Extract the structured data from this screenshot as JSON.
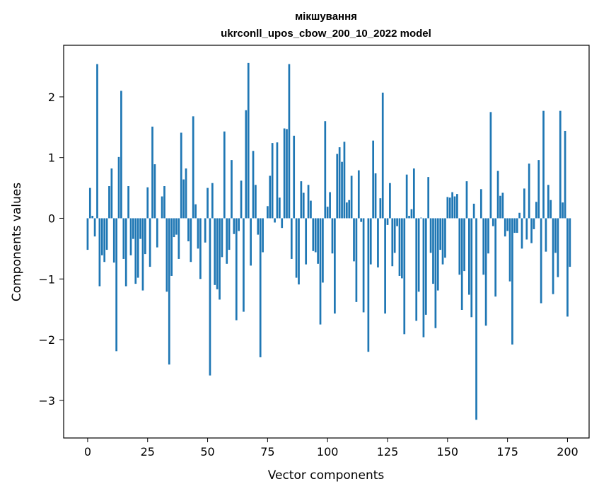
{
  "chart_data": {
    "type": "bar",
    "title": "мікшування",
    "subtitle": "ukrconll_upos_cbow_200_10_2022 model",
    "xlabel": "Vector components",
    "ylabel": "Components values",
    "xlim": [
      -10,
      209
    ],
    "ylim": [
      -3.62,
      2.85
    ],
    "xticks": [
      0,
      25,
      50,
      75,
      100,
      125,
      150,
      175,
      200
    ],
    "yticks": [
      -3,
      -2,
      -1,
      0,
      1,
      2
    ],
    "ytick_labels": [
      "−3",
      "−2",
      "−1",
      "0",
      "1",
      "2"
    ],
    "bar_color": "#1f77b4",
    "grid": false,
    "values": [
      -0.52,
      0.5,
      0.04,
      -0.3,
      2.54,
      -1.12,
      -0.61,
      -0.72,
      -0.52,
      0.53,
      0.82,
      -0.73,
      -2.19,
      1.01,
      2.1,
      -0.67,
      -1.12,
      0.53,
      -0.61,
      -0.34,
      -1.08,
      -0.98,
      -0.34,
      -1.19,
      -0.59,
      0.51,
      -0.8,
      1.51,
      0.89,
      -0.48,
      0.0,
      0.36,
      0.53,
      -1.21,
      -2.41,
      -0.95,
      -0.31,
      -0.27,
      -0.67,
      1.41,
      0.64,
      0.82,
      -0.38,
      -0.72,
      1.68,
      0.23,
      -0.5,
      -1.0,
      0.0,
      -0.4,
      0.5,
      -2.59,
      0.58,
      -1.1,
      -1.17,
      -1.34,
      -0.64,
      1.43,
      -0.75,
      -0.52,
      0.96,
      -0.26,
      -1.68,
      -0.21,
      0.62,
      -1.54,
      1.78,
      2.56,
      -0.78,
      1.11,
      0.55,
      -0.27,
      -2.29,
      -0.56,
      0.0,
      0.2,
      0.7,
      1.24,
      -0.07,
      1.25,
      0.34,
      -0.16,
      1.48,
      1.47,
      2.54,
      -0.67,
      1.36,
      -0.98,
      -1.09,
      0.61,
      0.42,
      -0.76,
      0.55,
      0.29,
      -0.54,
      -0.56,
      -0.75,
      -1.75,
      -1.06,
      1.6,
      0.19,
      0.43,
      -0.58,
      -1.57,
      1.06,
      1.17,
      0.93,
      1.26,
      0.26,
      0.3,
      0.7,
      -0.71,
      -1.38,
      0.79,
      -0.06,
      -1.55,
      0.0,
      -2.2,
      -0.76,
      1.28,
      0.74,
      -0.81,
      0.33,
      2.07,
      -1.57,
      -0.11,
      0.58,
      -0.79,
      -0.57,
      -0.13,
      -0.95,
      -0.99,
      -1.91,
      0.72,
      0.04,
      0.15,
      0.82,
      -1.69,
      -1.21,
      0.01,
      -1.96,
      -1.59,
      0.68,
      -0.57,
      -1.08,
      -1.81,
      -1.19,
      -0.52,
      -0.76,
      -0.65,
      0.35,
      0.34,
      0.43,
      0.36,
      0.4,
      -0.93,
      -1.51,
      -0.87,
      0.61,
      -1.26,
      -1.63,
      0.24,
      -3.32,
      0.0,
      0.48,
      -0.93,
      -1.77,
      -0.58,
      1.75,
      -0.13,
      -1.29,
      0.78,
      0.37,
      0.42,
      -0.3,
      -0.21,
      -1.04,
      -2.08,
      -0.24,
      -0.24,
      0.09,
      -0.5,
      0.49,
      -0.35,
      0.9,
      -0.41,
      -0.18,
      0.27,
      0.96,
      -1.4,
      1.77,
      -0.55,
      0.55,
      0.3,
      -1.25,
      -0.57,
      -0.97,
      1.77,
      0.26,
      1.44,
      -1.62,
      -0.8
    ]
  }
}
